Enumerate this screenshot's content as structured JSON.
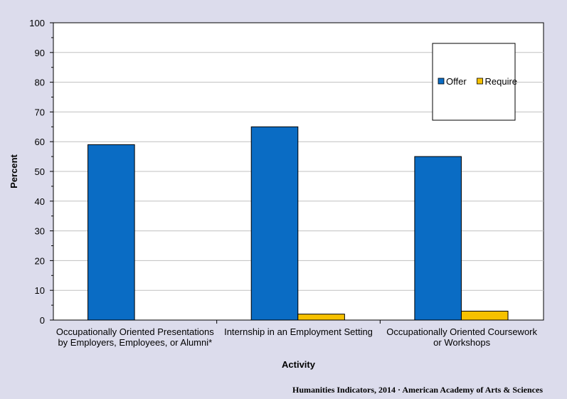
{
  "chart_data": {
    "type": "bar",
    "title": "",
    "categories": [
      [
        "Occupationally Oriented Presentations",
        "by Employers, Employees, or Alumni*"
      ],
      [
        "Internship in an Employment Setting"
      ],
      [
        "Occupationally Oriented Coursework",
        "or Workshops"
      ]
    ],
    "series": [
      {
        "name": "Offer",
        "values": [
          59,
          65,
          55
        ],
        "color": "#0a6cc4"
      },
      {
        "name": "Require",
        "values": [
          0,
          2,
          3
        ],
        "color": "#f6c100"
      }
    ],
    "xlabel": "Activity",
    "ylabel": "Percent",
    "ylim": [
      0,
      100
    ],
    "yticks": [
      0,
      10,
      20,
      30,
      40,
      50,
      60,
      70,
      80,
      90,
      100
    ],
    "grid": true,
    "legend_position": "top-right",
    "plot_background": "#ffffff",
    "page_background": "#dcdcec",
    "gridline_color": "#c0c0c0"
  },
  "footer": {
    "credit": "Humanities Indicators, 2014 · American Academy of Arts & Sciences"
  }
}
